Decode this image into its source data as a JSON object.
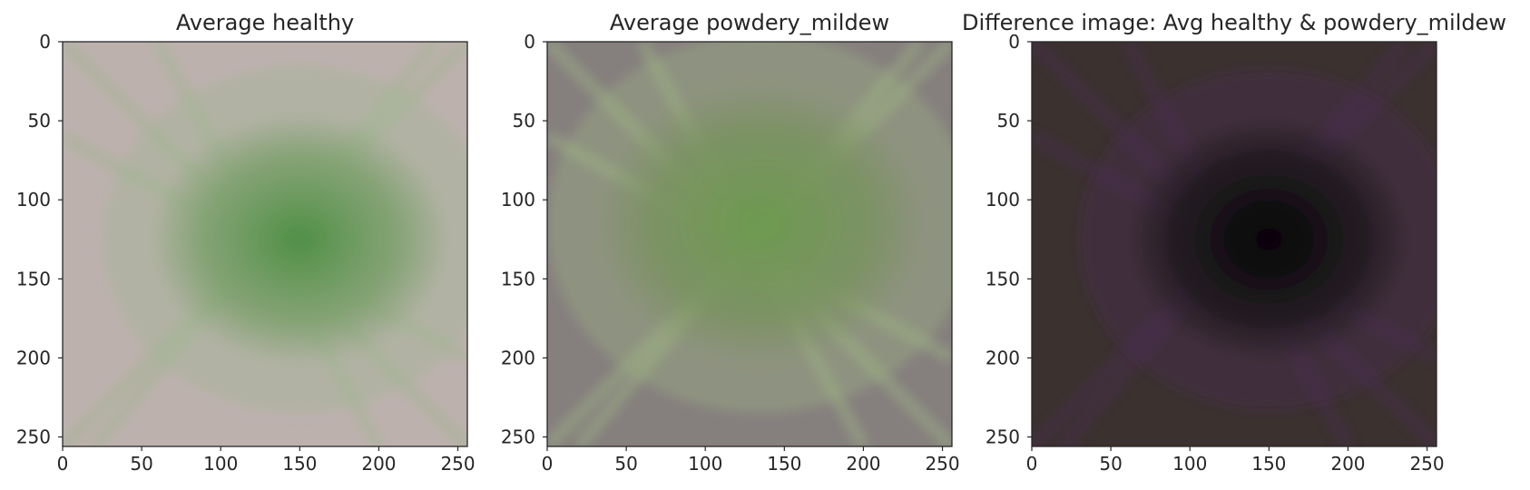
{
  "chart_data": [
    {
      "type": "heatmap",
      "title": "Average healthy",
      "xlabel": "",
      "ylabel": "",
      "xlim": [
        0,
        256
      ],
      "ylim": [
        256,
        0
      ],
      "xticks": [
        "0",
        "50",
        "100",
        "150",
        "200",
        "250"
      ],
      "yticks": [
        "0",
        "50",
        "100",
        "150",
        "200",
        "250"
      ],
      "grid": false,
      "colors": {
        "background": "#bdb1ae",
        "leaf": "#4f8f45",
        "leaf_mid": "#7da06d",
        "veins": "#9fb58e"
      },
      "leaf_ellipse": {
        "cx": 150,
        "cy": 125,
        "rx": 95,
        "ry": 80
      }
    },
    {
      "type": "heatmap",
      "title": "Average powdery_mildew",
      "xlabel": "",
      "ylabel": "",
      "xlim": [
        0,
        256
      ],
      "ylim": [
        256,
        0
      ],
      "xticks": [
        "0",
        "50",
        "100",
        "150",
        "200",
        "250"
      ],
      "yticks": [
        "0",
        "50",
        "100",
        "150",
        "200",
        "250"
      ],
      "grid": false,
      "colors": {
        "background": "#857f7e",
        "leaf": "#6c9a4f",
        "leaf_mid": "#79925f",
        "veins": "#a0b884"
      },
      "leaf_ellipse": {
        "cx": 135,
        "cy": 115,
        "rx": 105,
        "ry": 90
      }
    },
    {
      "type": "heatmap",
      "title": "Difference image: Avg healthy & powdery_mildew",
      "xlabel": "",
      "ylabel": "",
      "xlim": [
        0,
        256
      ],
      "ylim": [
        256,
        0
      ],
      "xticks": [
        "0",
        "50",
        "100",
        "150",
        "200",
        "250"
      ],
      "yticks": [
        "0",
        "50",
        "100",
        "150",
        "200",
        "250"
      ],
      "grid": false,
      "colors": {
        "background": "#3b312f",
        "leaf": "#050306",
        "leaf_mid": "#1d1a1c",
        "veins": "#4a2d52"
      },
      "leaf_ellipse": {
        "cx": 150,
        "cy": 125,
        "rx": 90,
        "ry": 78
      }
    }
  ]
}
